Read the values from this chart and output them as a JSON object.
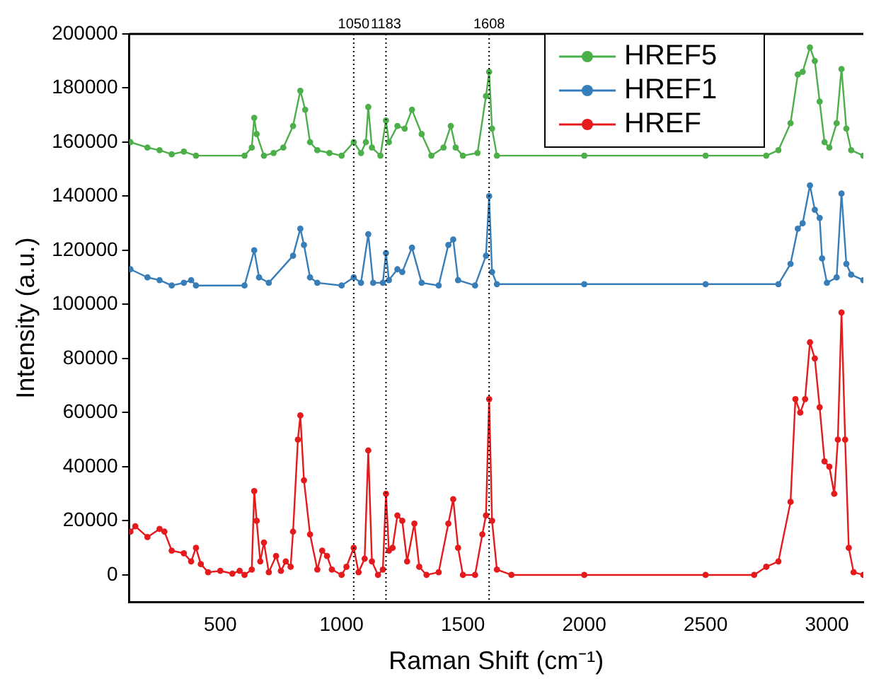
{
  "chart_data": {
    "type": "line",
    "xlabel": "Raman Shift (cm⁻¹)",
    "ylabel": "Intensity (a.u.)",
    "xlim": [
      125,
      3150
    ],
    "xticks": [
      500,
      1000,
      1500,
      2000,
      2500,
      3000
    ],
    "ylim": [
      -10000,
      200000
    ],
    "yticks": [
      0,
      20000,
      40000,
      60000,
      80000,
      100000,
      120000,
      140000,
      160000,
      180000,
      200000
    ],
    "grid": false,
    "legend": "top right",
    "marker": "circle",
    "line_style": "solid",
    "ref_lines": [
      {
        "axis": "x",
        "value": 1050,
        "label": "1050",
        "color": "#000000",
        "line_style": "dotted"
      },
      {
        "axis": "x",
        "value": 1183,
        "label": "1183",
        "color": "#000000",
        "line_style": "dotted"
      },
      {
        "axis": "x",
        "value": 1608,
        "label": "1608",
        "color": "#000000",
        "line_style": "dotted"
      }
    ],
    "series": [
      {
        "name": "HREF5",
        "color": "#4daf4a",
        "x": [
          130,
          200,
          250,
          300,
          350,
          400,
          600,
          630,
          640,
          650,
          680,
          720,
          760,
          800,
          830,
          850,
          870,
          900,
          950,
          1000,
          1050,
          1080,
          1100,
          1110,
          1125,
          1160,
          1183,
          1195,
          1230,
          1260,
          1290,
          1330,
          1370,
          1420,
          1450,
          1470,
          1500,
          1560,
          1595,
          1608,
          1620,
          1640,
          2000,
          2500,
          2750,
          2800,
          2850,
          2880,
          2900,
          2930,
          2950,
          2970,
          2990,
          3010,
          3040,
          3060,
          3080,
          3100,
          3150
        ],
        "values": [
          160000,
          158000,
          157000,
          155500,
          156500,
          155000,
          155000,
          158000,
          169000,
          163000,
          155000,
          156000,
          158000,
          166000,
          179000,
          172000,
          160000,
          157000,
          156000,
          155000,
          160000,
          156000,
          160000,
          173000,
          158000,
          155000,
          168000,
          160000,
          166000,
          165000,
          172000,
          163000,
          155000,
          158000,
          166000,
          158000,
          155000,
          156000,
          177000,
          186000,
          165000,
          155000,
          155000,
          155000,
          155000,
          157000,
          167000,
          185000,
          186000,
          195000,
          190000,
          175000,
          160000,
          158000,
          167000,
          187000,
          165000,
          157000,
          155000
        ]
      },
      {
        "name": "HREF1",
        "color": "#377eb8",
        "x": [
          130,
          200,
          250,
          300,
          350,
          380,
          400,
          600,
          640,
          660,
          700,
          800,
          830,
          845,
          870,
          900,
          1000,
          1050,
          1080,
          1110,
          1130,
          1170,
          1183,
          1195,
          1230,
          1250,
          1290,
          1330,
          1400,
          1440,
          1460,
          1480,
          1550,
          1595,
          1608,
          1620,
          1640,
          2000,
          2500,
          2800,
          2850,
          2880,
          2900,
          2930,
          2950,
          2970,
          2980,
          3000,
          3040,
          3060,
          3080,
          3100,
          3150
        ],
        "values": [
          113000,
          110000,
          109000,
          107000,
          108000,
          109000,
          107000,
          107000,
          120000,
          110000,
          108000,
          118000,
          128000,
          122000,
          110000,
          108000,
          107000,
          110000,
          108000,
          126000,
          108000,
          108000,
          119000,
          109000,
          113000,
          112000,
          121000,
          108000,
          107000,
          122000,
          124000,
          109000,
          107000,
          118000,
          140000,
          112000,
          107500,
          107500,
          107500,
          107500,
          115000,
          128000,
          130000,
          144000,
          135000,
          132000,
          117000,
          108000,
          110000,
          141000,
          115000,
          111000,
          109000
        ]
      },
      {
        "name": "HREF",
        "color": "#e41a1c",
        "x": [
          130,
          150,
          200,
          250,
          270,
          300,
          350,
          380,
          400,
          420,
          450,
          500,
          550,
          580,
          600,
          630,
          640,
          650,
          665,
          680,
          700,
          730,
          750,
          770,
          790,
          800,
          820,
          830,
          845,
          870,
          900,
          920,
          940,
          960,
          1000,
          1020,
          1050,
          1070,
          1095,
          1110,
          1125,
          1150,
          1170,
          1183,
          1195,
          1210,
          1230,
          1250,
          1270,
          1300,
          1320,
          1350,
          1400,
          1440,
          1460,
          1480,
          1500,
          1550,
          1580,
          1595,
          1608,
          1620,
          1640,
          1700,
          2000,
          2500,
          2700,
          2750,
          2800,
          2850,
          2870,
          2890,
          2910,
          2930,
          2950,
          2970,
          2990,
          3010,
          3030,
          3045,
          3060,
          3075,
          3090,
          3110,
          3150
        ],
        "values": [
          16000,
          18000,
          14000,
          17000,
          16000,
          9000,
          8000,
          5000,
          10000,
          4000,
          1000,
          1500,
          500,
          1500,
          0,
          2000,
          31000,
          20000,
          5000,
          12000,
          1000,
          7000,
          1500,
          5000,
          3000,
          16000,
          50000,
          59000,
          35000,
          15000,
          2000,
          9000,
          7000,
          2000,
          0,
          3000,
          10000,
          1000,
          6000,
          46000,
          5000,
          0,
          2000,
          30000,
          9000,
          10000,
          22000,
          20000,
          5000,
          19000,
          3000,
          0,
          1000,
          19000,
          28000,
          10000,
          0,
          0,
          15000,
          22000,
          65000,
          20000,
          2000,
          0,
          0,
          0,
          0,
          3000,
          5000,
          27000,
          65000,
          60000,
          65000,
          86000,
          80000,
          62000,
          42000,
          40000,
          30000,
          50000,
          97000,
          50000,
          10000,
          1000,
          0
        ]
      }
    ]
  }
}
